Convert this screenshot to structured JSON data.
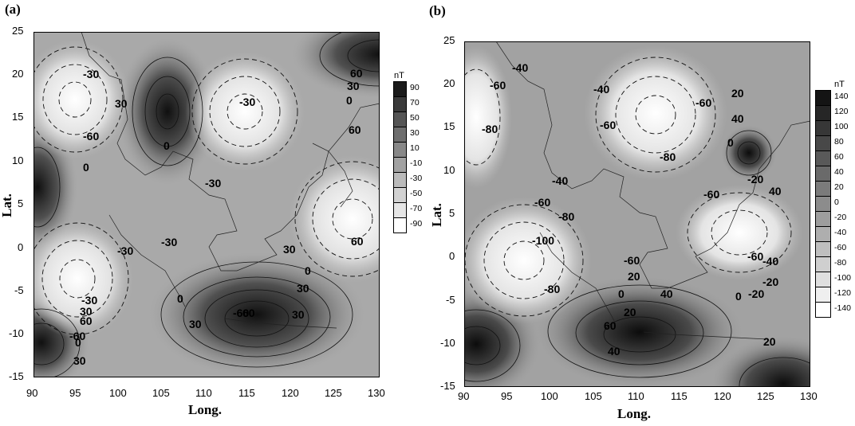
{
  "panels": [
    {
      "tag": "(a)",
      "xlabel": "Long.",
      "ylabel": "Lat.",
      "xticks": [
        "90",
        "95",
        "100",
        "105",
        "110",
        "115",
        "120",
        "125",
        "130"
      ],
      "yticks": [
        "25",
        "20",
        "15",
        "10",
        "5",
        "0",
        "-5",
        "-10",
        "-15"
      ],
      "colorbar": {
        "unit": "nT",
        "labels": [
          "90",
          "70",
          "50",
          "30",
          "10",
          "-10",
          "-30",
          "-50",
          "-70",
          "-90"
        ],
        "colors": [
          "#1a1a1a",
          "#3a3a3a",
          "#555555",
          "#6e6e6e",
          "#888888",
          "#a2a2a2",
          "#bbbbbb",
          "#d2d2d2",
          "#e6e6e6",
          "#ffffff"
        ]
      },
      "contour_labels": [
        "60",
        "30",
        "0",
        "-30",
        "-60",
        "30",
        "60",
        "-30",
        "0",
        "-30",
        "-30",
        "0",
        "-30",
        "60",
        "30",
        "0",
        "30",
        "0",
        "30",
        "-60",
        "-30",
        "30",
        "-60",
        "60",
        "0",
        "30",
        "60",
        "30"
      ]
    },
    {
      "tag": "(b)",
      "xlabel": "Long.",
      "ylabel": "Lat.",
      "xticks": [
        "90",
        "95",
        "100",
        "105",
        "110",
        "115",
        "120",
        "125",
        "130"
      ],
      "yticks": [
        "25",
        "20",
        "15",
        "10",
        "5",
        "0",
        "-5",
        "-10",
        "-15"
      ],
      "colorbar": {
        "unit": "nT",
        "labels": [
          "140",
          "120",
          "100",
          "80",
          "60",
          "40",
          "20",
          "0",
          "-20",
          "-40",
          "-60",
          "-80",
          "-100",
          "-120",
          "-140"
        ],
        "colors": [
          "#141414",
          "#262626",
          "#373737",
          "#484848",
          "#595959",
          "#6a6a6a",
          "#7b7b7b",
          "#8c8c8c",
          "#9d9d9d",
          "#aeaeae",
          "#bfbfbf",
          "#cfcfcf",
          "#dfdfdf",
          "#efefef",
          "#ffffff"
        ]
      },
      "contour_labels": [
        "-40",
        "-60",
        "-80",
        "-60",
        "-40",
        "-60",
        "-80",
        "-100",
        "-80",
        "-40",
        "-60",
        "20",
        "40",
        "0",
        "-20",
        "40",
        "-80",
        "-60",
        "-60",
        "-40",
        "-20",
        "-20",
        "-60",
        "20",
        "0",
        "40",
        "60",
        "20",
        "40",
        "20",
        "0"
      ]
    }
  ],
  "chart_data": [
    {
      "type": "heatmap",
      "title": "(a)",
      "xlabel": "Long.",
      "ylabel": "Lat.",
      "xlim": [
        90,
        130
      ],
      "ylim": [
        -15,
        25
      ],
      "unit": "nT",
      "color_levels": [
        90,
        70,
        50,
        30,
        10,
        -10,
        -30,
        -50,
        -70,
        -90
      ],
      "features": [
        {
          "kind": "max",
          "lon": 130,
          "lat": 22
        },
        {
          "kind": "max",
          "lon": 105,
          "lat": 15
        },
        {
          "kind": "max",
          "lon": 116,
          "lat": -9
        },
        {
          "kind": "max",
          "lon": 91,
          "lat": -11
        },
        {
          "kind": "max",
          "lon": 90,
          "lat": 8
        },
        {
          "kind": "min",
          "lon": 93,
          "lat": 17
        },
        {
          "kind": "min",
          "lon": 114,
          "lat": 15
        },
        {
          "kind": "min",
          "lon": 128,
          "lat": 5
        },
        {
          "kind": "min",
          "lon": 95,
          "lat": -3
        }
      ]
    },
    {
      "type": "heatmap",
      "title": "(b)",
      "xlabel": "Long.",
      "ylabel": "Lat.",
      "xlim": [
        90,
        130
      ],
      "ylim": [
        -15,
        25
      ],
      "unit": "nT",
      "color_levels": [
        140,
        120,
        100,
        80,
        60,
        40,
        20,
        0,
        -20,
        -40,
        -60,
        -80,
        -100,
        -120,
        -140
      ],
      "features": [
        {
          "kind": "max",
          "lon": 91,
          "lat": -10
        },
        {
          "kind": "max",
          "lon": 110,
          "lat": -8
        },
        {
          "kind": "max",
          "lon": 128,
          "lat": -13
        },
        {
          "kind": "max",
          "lon": 123,
          "lat": 11
        },
        {
          "kind": "min",
          "lon": 112,
          "lat": 17
        },
        {
          "kind": "min",
          "lon": 97,
          "lat": 0
        },
        {
          "kind": "min",
          "lon": 122,
          "lat": 3
        },
        {
          "kind": "min",
          "lon": 91,
          "lat": 16
        }
      ]
    }
  ]
}
